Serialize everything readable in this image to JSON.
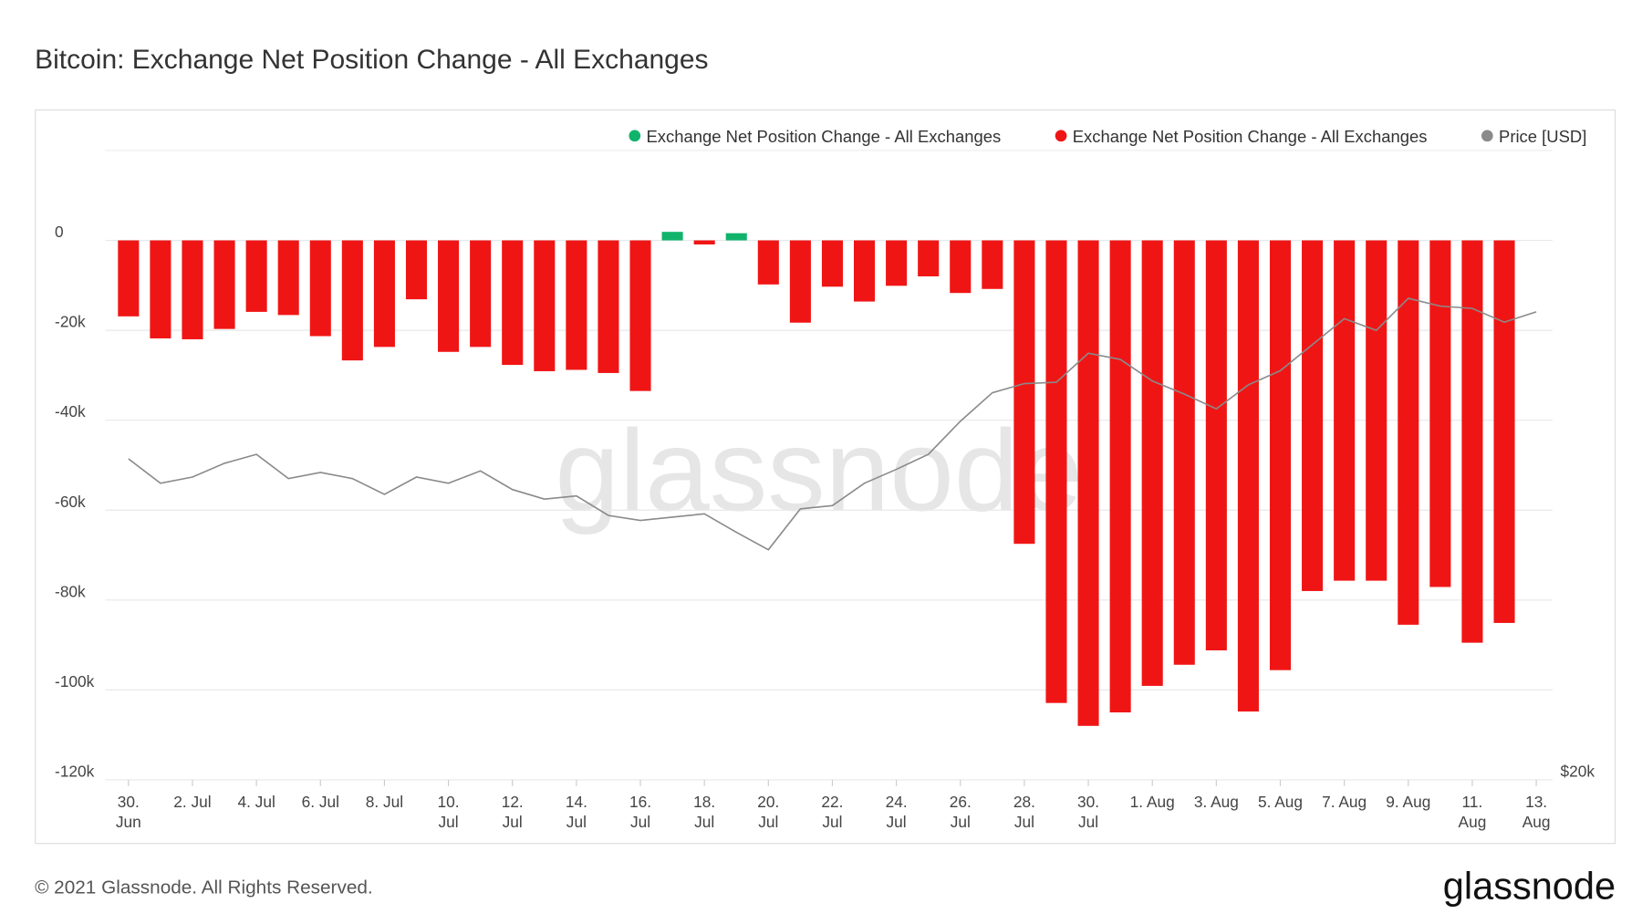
{
  "chart_data": {
    "type": "bar",
    "title": "Bitcoin: Exchange Net Position Change - All Exchanges",
    "watermark": "glassnode",
    "footer": "© 2021 Glassnode. All Rights Reserved.",
    "logo": "glassnode",
    "categories": [
      "30. Jun",
      null,
      "2. Jul",
      null,
      "4. Jul",
      null,
      "6. Jul",
      null,
      "8. Jul",
      null,
      "10. Jul",
      null,
      "12. Jul",
      null,
      "14. Jul",
      null,
      "16. Jul",
      null,
      "18. Jul",
      null,
      "20. Jul",
      null,
      "22. Jul",
      null,
      "24. Jul",
      null,
      "26. Jul",
      null,
      "28. Jul",
      null,
      "30. Jul",
      null,
      "1. Aug",
      null,
      "3. Aug",
      null,
      "5. Aug",
      null,
      "7. Aug",
      null,
      "9. Aug",
      null,
      "11. Aug",
      null,
      "13. Aug"
    ],
    "series": [
      {
        "name": "Exchange Net Position Change - All Exchanges",
        "color": "#11b36b",
        "values": [
          null,
          null,
          null,
          null,
          null,
          null,
          null,
          null,
          null,
          null,
          null,
          null,
          null,
          null,
          null,
          null,
          null,
          1900,
          null,
          1600,
          null,
          null,
          null,
          null,
          null,
          null,
          null,
          null,
          null,
          null,
          null,
          null,
          null,
          null,
          null,
          null,
          null,
          null,
          null,
          null,
          null,
          null,
          null,
          null,
          null
        ]
      },
      {
        "name": "Exchange Net Position Change - All Exchanges",
        "color": "#f01515",
        "values": [
          -16900,
          -21800,
          -22000,
          -19700,
          -15900,
          -16600,
          -21300,
          -26700,
          -23700,
          -13100,
          -24800,
          -23700,
          -27700,
          -29100,
          -28800,
          -29500,
          -33500,
          null,
          -900,
          null,
          -9800,
          -18300,
          -10300,
          -13600,
          -10100,
          -8000,
          -11700,
          -10800,
          -67500,
          -102900,
          -108000,
          -105000,
          -99100,
          -94400,
          -91200,
          -104800,
          -95600,
          -78000,
          -75700,
          -75700,
          -85500,
          -77100,
          -89500,
          -85100,
          null
        ]
      },
      {
        "name": "Price [USD]",
        "color": "#8a8a8a",
        "axis": "y2",
        "values": [
          36200,
          34600,
          35000,
          35900,
          36500,
          34900,
          35300,
          34900,
          33900,
          35000,
          34600,
          35400,
          34200,
          33600,
          33800,
          32600,
          32300,
          32500,
          32700,
          31600,
          30600,
          33000,
          33200,
          34600,
          35500,
          36500,
          38800,
          40900,
          41600,
          41700,
          44000,
          43500,
          41800,
          40800,
          39700,
          41500,
          42600,
          44700,
          46900,
          45900,
          48700,
          48000,
          47800,
          46600,
          47500
        ]
      }
    ],
    "ylim": [
      -120000,
      20000
    ],
    "yticks": [
      0,
      {
        "value": -20000,
        "label": "-20k"
      },
      {
        "value": -40000,
        "label": "-40k"
      },
      {
        "value": -60000,
        "label": "-60k"
      },
      {
        "value": -80000,
        "label": "-80k"
      },
      {
        "value": -100000,
        "label": "-100k"
      },
      {
        "value": -120000,
        "label": "-120k"
      }
    ],
    "y2lim": [
      20000,
      64000
    ],
    "y2ticks": [
      {
        "value": 20000,
        "label": "$20k"
      }
    ],
    "y2log": true,
    "grid": true,
    "legend": "top-right"
  }
}
